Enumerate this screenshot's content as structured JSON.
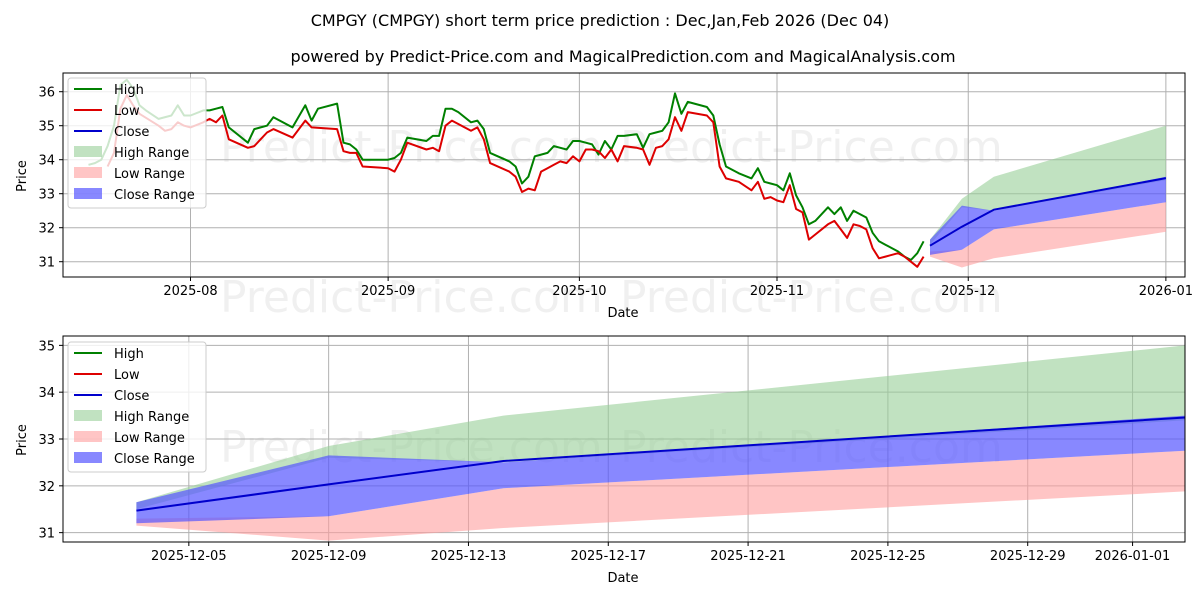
{
  "title_line1": "CMPGY (CMPGY) short term price prediction : Dec,Jan,Feb 2026 (Dec 04)",
  "title_line2": "powered by Predict-Price.com and MagicalPrediction.com and MagicalAnalysis.com",
  "watermark": "Predict-Price.com",
  "colors": {
    "high": "#008000",
    "low": "#dd0000",
    "close": "#0000cc",
    "high_range": "#98cf98",
    "low_range": "#ff9f9f",
    "close_range": "#5555ff"
  },
  "legend": [
    "High",
    "Low",
    "Close",
    "High Range",
    "Low Range",
    "Close Range"
  ],
  "chart_data": [
    {
      "type": "line",
      "name": "top",
      "xlabel": "Date",
      "ylabel": "Price",
      "xlim": [
        -10,
        166
      ],
      "ylim": [
        30.55,
        36.55
      ],
      "x_origin": "2025-07-22",
      "xticks": [
        {
          "x": 10,
          "label": "2025-08"
        },
        {
          "x": 41,
          "label": "2025-09"
        },
        {
          "x": 71,
          "label": "2025-10"
        },
        {
          "x": 102,
          "label": "2025-11"
        },
        {
          "x": 132,
          "label": "2025-12"
        },
        {
          "x": 163,
          "label": "2026-01"
        }
      ],
      "yticks": [
        31,
        32,
        33,
        34,
        35,
        36
      ],
      "high": [
        [
          -6,
          33.85
        ],
        [
          -5,
          33.9
        ],
        [
          -4,
          34.0
        ],
        [
          -3,
          34.4
        ],
        [
          -2,
          35.0
        ],
        [
          -1,
          36.2
        ],
        [
          0,
          36.35
        ],
        [
          1,
          36.1
        ],
        [
          2,
          35.6
        ],
        [
          3,
          35.45
        ],
        [
          5,
          35.2
        ],
        [
          7,
          35.3
        ],
        [
          8,
          35.6
        ],
        [
          9,
          35.3
        ],
        [
          10,
          35.3
        ],
        [
          12,
          35.45
        ],
        [
          13,
          35.45
        ],
        [
          14,
          35.5
        ],
        [
          15,
          35.55
        ],
        [
          16,
          34.95
        ],
        [
          19,
          34.5
        ],
        [
          20,
          34.9
        ],
        [
          21,
          34.95
        ],
        [
          22,
          35.0
        ],
        [
          23,
          35.25
        ],
        [
          26,
          34.95
        ],
        [
          28,
          35.6
        ],
        [
          29,
          35.15
        ],
        [
          30,
          35.5
        ],
        [
          33,
          35.65
        ],
        [
          34,
          34.5
        ],
        [
          35,
          34.45
        ],
        [
          36,
          34.3
        ],
        [
          37,
          34.0
        ],
        [
          41,
          34.0
        ],
        [
          42,
          34.05
        ],
        [
          43,
          34.2
        ],
        [
          44,
          34.65
        ],
        [
          47,
          34.55
        ],
        [
          48,
          34.7
        ],
        [
          49,
          34.7
        ],
        [
          50,
          35.5
        ],
        [
          51,
          35.5
        ],
        [
          52,
          35.4
        ],
        [
          54,
          35.1
        ],
        [
          55,
          35.15
        ],
        [
          56,
          34.9
        ],
        [
          57,
          34.2
        ],
        [
          60,
          33.95
        ],
        [
          61,
          33.8
        ],
        [
          62,
          33.3
        ],
        [
          63,
          33.5
        ],
        [
          64,
          34.1
        ],
        [
          65,
          34.15
        ],
        [
          66,
          34.2
        ],
        [
          67,
          34.4
        ],
        [
          68,
          34.35
        ],
        [
          69,
          34.3
        ],
        [
          70,
          34.55
        ],
        [
          71,
          34.55
        ],
        [
          72,
          34.5
        ],
        [
          73,
          34.45
        ],
        [
          74,
          34.15
        ],
        [
          75,
          34.55
        ],
        [
          76,
          34.3
        ],
        [
          77,
          34.7
        ],
        [
          78,
          34.7
        ],
        [
          80,
          34.75
        ],
        [
          81,
          34.35
        ],
        [
          82,
          34.75
        ],
        [
          83,
          34.8
        ],
        [
          84,
          34.85
        ],
        [
          85,
          35.1
        ],
        [
          86,
          35.95
        ],
        [
          87,
          35.35
        ],
        [
          88,
          35.7
        ],
        [
          91,
          35.55
        ],
        [
          92,
          35.3
        ],
        [
          93,
          34.45
        ],
        [
          94,
          33.8
        ],
        [
          95,
          33.7
        ],
        [
          96,
          33.6
        ],
        [
          98,
          33.45
        ],
        [
          99,
          33.75
        ],
        [
          100,
          33.35
        ],
        [
          101,
          33.3
        ],
        [
          102,
          33.25
        ],
        [
          103,
          33.1
        ],
        [
          104,
          33.6
        ],
        [
          105,
          32.95
        ],
        [
          106,
          32.6
        ],
        [
          107,
          32.1
        ],
        [
          108,
          32.2
        ],
        [
          110,
          32.6
        ],
        [
          111,
          32.4
        ],
        [
          112,
          32.6
        ],
        [
          113,
          32.2
        ],
        [
          114,
          32.5
        ],
        [
          115,
          32.4
        ],
        [
          116,
          32.3
        ],
        [
          117,
          31.85
        ],
        [
          118,
          31.6
        ],
        [
          119,
          31.5
        ],
        [
          121,
          31.3
        ],
        [
          122,
          31.15
        ],
        [
          123,
          31.05
        ],
        [
          124,
          31.25
        ],
        [
          125,
          31.6
        ]
      ],
      "low": [
        [
          -3,
          33.8
        ],
        [
          -2,
          34.2
        ],
        [
          -1,
          35.5
        ],
        [
          0,
          35.9
        ],
        [
          1,
          35.6
        ],
        [
          2,
          35.35
        ],
        [
          5,
          35.0
        ],
        [
          6,
          34.85
        ],
        [
          7,
          34.9
        ],
        [
          8,
          35.1
        ],
        [
          9,
          35.0
        ],
        [
          10,
          34.95
        ],
        [
          12,
          35.1
        ],
        [
          13,
          35.2
        ],
        [
          14,
          35.1
        ],
        [
          15,
          35.3
        ],
        [
          16,
          34.6
        ],
        [
          19,
          34.35
        ],
        [
          20,
          34.4
        ],
        [
          21,
          34.6
        ],
        [
          22,
          34.8
        ],
        [
          23,
          34.9
        ],
        [
          26,
          34.65
        ],
        [
          28,
          35.15
        ],
        [
          29,
          34.95
        ],
        [
          33,
          34.9
        ],
        [
          34,
          34.25
        ],
        [
          35,
          34.2
        ],
        [
          36,
          34.2
        ],
        [
          37,
          33.8
        ],
        [
          41,
          33.75
        ],
        [
          42,
          33.65
        ],
        [
          43,
          34.0
        ],
        [
          44,
          34.5
        ],
        [
          47,
          34.3
        ],
        [
          48,
          34.35
        ],
        [
          49,
          34.25
        ],
        [
          50,
          35.0
        ],
        [
          51,
          35.15
        ],
        [
          52,
          35.05
        ],
        [
          54,
          34.85
        ],
        [
          55,
          34.95
        ],
        [
          56,
          34.6
        ],
        [
          57,
          33.9
        ],
        [
          60,
          33.65
        ],
        [
          61,
          33.5
        ],
        [
          62,
          33.05
        ],
        [
          63,
          33.15
        ],
        [
          64,
          33.1
        ],
        [
          65,
          33.65
        ],
        [
          66,
          33.75
        ],
        [
          67,
          33.85
        ],
        [
          68,
          33.95
        ],
        [
          69,
          33.9
        ],
        [
          70,
          34.1
        ],
        [
          71,
          33.95
        ],
        [
          72,
          34.3
        ],
        [
          73,
          34.3
        ],
        [
          74,
          34.25
        ],
        [
          75,
          34.05
        ],
        [
          76,
          34.3
        ],
        [
          77,
          33.95
        ],
        [
          78,
          34.4
        ],
        [
          80,
          34.35
        ],
        [
          81,
          34.3
        ],
        [
          82,
          33.85
        ],
        [
          83,
          34.35
        ],
        [
          84,
          34.4
        ],
        [
          85,
          34.6
        ],
        [
          86,
          35.25
        ],
        [
          87,
          34.85
        ],
        [
          88,
          35.4
        ],
        [
          91,
          35.3
        ],
        [
          92,
          35.1
        ],
        [
          93,
          33.8
        ],
        [
          94,
          33.45
        ],
        [
          96,
          33.35
        ],
        [
          98,
          33.1
        ],
        [
          99,
          33.35
        ],
        [
          100,
          32.85
        ],
        [
          101,
          32.9
        ],
        [
          102,
          32.8
        ],
        [
          103,
          32.75
        ],
        [
          104,
          33.25
        ],
        [
          105,
          32.55
        ],
        [
          106,
          32.45
        ],
        [
          107,
          31.65
        ],
        [
          108,
          31.8
        ],
        [
          110,
          32.1
        ],
        [
          111,
          32.2
        ],
        [
          112,
          31.95
        ],
        [
          113,
          31.7
        ],
        [
          114,
          32.1
        ],
        [
          115,
          32.05
        ],
        [
          116,
          31.95
        ],
        [
          117,
          31.4
        ],
        [
          118,
          31.1
        ],
        [
          119,
          31.15
        ],
        [
          121,
          31.25
        ],
        [
          122,
          31.15
        ],
        [
          123,
          31.0
        ],
        [
          124,
          30.85
        ],
        [
          125,
          31.15
        ]
      ],
      "close": [
        [
          126,
          31.47
        ],
        [
          131,
          32.03
        ],
        [
          136,
          32.53
        ],
        [
          163,
          33.46
        ]
      ],
      "high_range": {
        "x": [
          126,
          131,
          136,
          163
        ],
        "upper": [
          31.65,
          32.85,
          33.5,
          35.0
        ],
        "lower": [
          31.5,
          32.6,
          32.5,
          33.4
        ]
      },
      "low_range": {
        "x": [
          126,
          131,
          136,
          163
        ],
        "upper": [
          31.3,
          31.35,
          31.95,
          32.75
        ],
        "lower": [
          31.15,
          30.83,
          31.1,
          31.88
        ]
      },
      "close_range": {
        "x": [
          126,
          131,
          136,
          163
        ],
        "upper": [
          31.65,
          32.65,
          32.5,
          33.5
        ],
        "lower": [
          31.2,
          31.35,
          31.95,
          32.75
        ]
      }
    },
    {
      "type": "line",
      "name": "bottom",
      "xlabel": "Date",
      "ylabel": "Price",
      "xlim": [
        -1.6,
        30.5
      ],
      "ylim": [
        30.8,
        35.2
      ],
      "x_origin": "2025-12-03",
      "xticks": [
        {
          "x": 2,
          "label": "2025-12-05"
        },
        {
          "x": 6,
          "label": "2025-12-09"
        },
        {
          "x": 10,
          "label": "2025-12-13"
        },
        {
          "x": 14,
          "label": "2025-12-17"
        },
        {
          "x": 18,
          "label": "2025-12-21"
        },
        {
          "x": 22,
          "label": "2025-12-25"
        },
        {
          "x": 26,
          "label": "2025-12-29"
        },
        {
          "x": 29,
          "label": "2026-01-01"
        }
      ],
      "yticks": [
        31,
        32,
        33,
        34,
        35
      ],
      "close": [
        [
          0.5,
          31.47
        ],
        [
          6,
          32.03
        ],
        [
          11,
          32.53
        ],
        [
          30.5,
          33.46
        ]
      ],
      "high_range": {
        "x": [
          0.5,
          6,
          11,
          30.5
        ],
        "upper": [
          31.65,
          32.85,
          33.5,
          35.0
        ],
        "lower": [
          31.5,
          32.6,
          32.5,
          33.4
        ]
      },
      "low_range": {
        "x": [
          0.5,
          6,
          11,
          30.5
        ],
        "upper": [
          31.3,
          31.35,
          31.95,
          32.75
        ],
        "lower": [
          31.15,
          30.83,
          31.1,
          31.88
        ]
      },
      "close_range": {
        "x": [
          0.5,
          6,
          11,
          30.5
        ],
        "upper": [
          31.65,
          32.65,
          32.5,
          33.5
        ],
        "lower": [
          31.2,
          31.35,
          31.95,
          32.75
        ]
      }
    }
  ]
}
